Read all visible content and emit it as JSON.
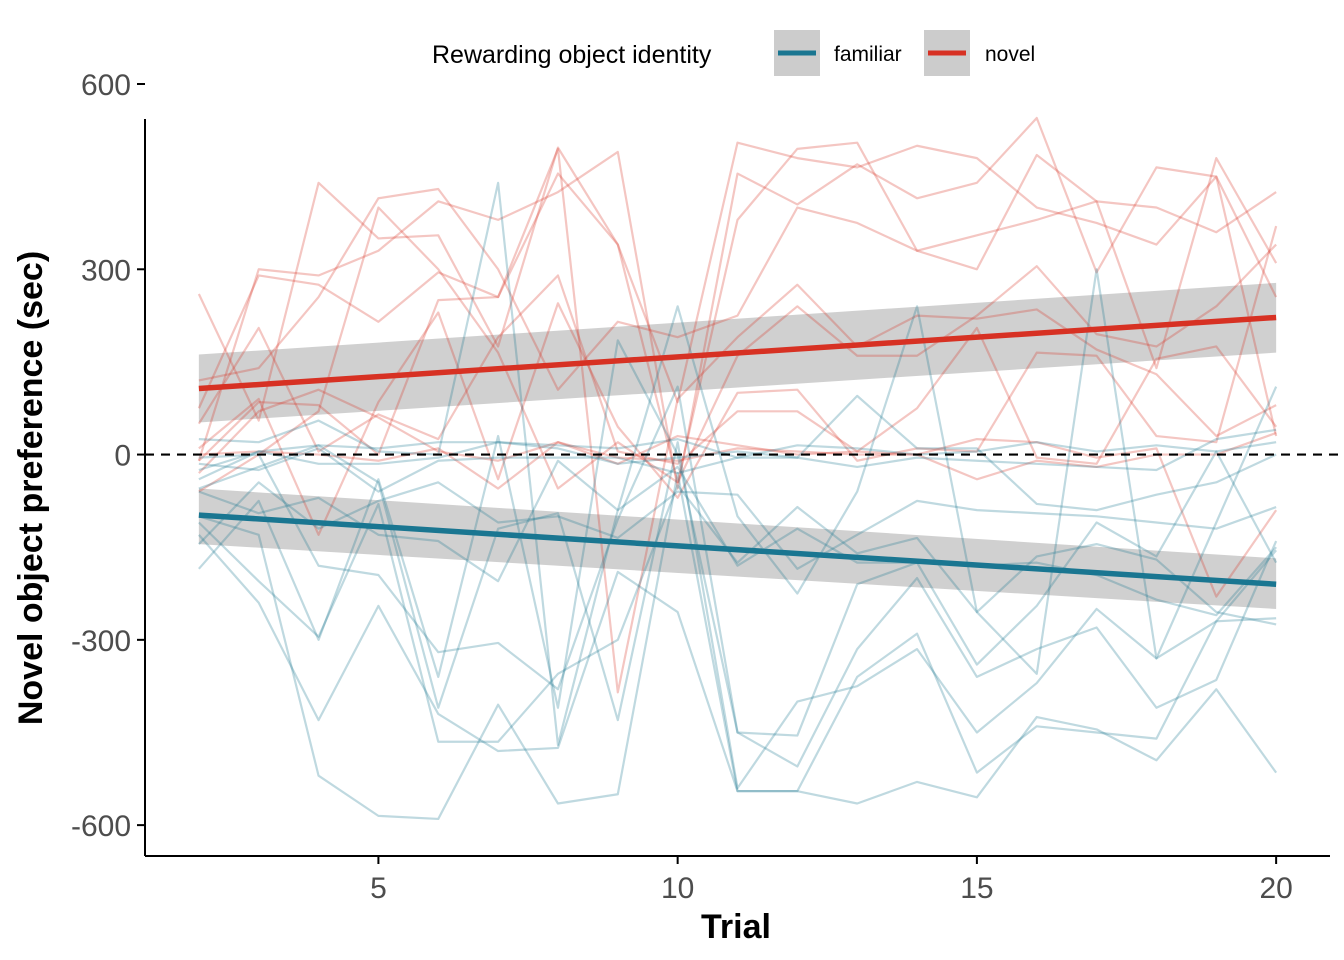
{
  "chart_data": {
    "type": "line",
    "xlabel": "Trial",
    "ylabel": "Novel object preference (sec)",
    "xlim": [
      1.1,
      20.9
    ],
    "ylim": [
      -650,
      600
    ],
    "xticks": [
      5,
      10,
      15,
      20
    ],
    "xtick_labels": [
      "5",
      "10",
      "15",
      "20"
    ],
    "yticks": [
      600,
      300,
      0,
      -300,
      -600
    ],
    "ytick_labels": [
      "600",
      "300",
      "0",
      "-300",
      "-600"
    ],
    "reference_line": {
      "y": 0,
      "style": "dashed",
      "color": "#000000"
    },
    "legend": {
      "title": "Rewarding object identity",
      "position": "top",
      "entries": [
        {
          "label": "familiar",
          "color": "#1a7691"
        },
        {
          "label": "novel",
          "color": "#d73123"
        }
      ]
    },
    "colors": {
      "familiar": "#1a7691",
      "novel": "#d73123",
      "ribbon": "#cccccc"
    },
    "x": [
      2,
      3,
      4,
      5,
      6,
      7,
      8,
      9,
      10,
      11,
      12,
      13,
      14,
      15,
      16,
      17,
      18,
      19,
      20
    ],
    "trend_lines": [
      {
        "group": "familiar",
        "x": [
          2,
          20
        ],
        "y": [
          -98,
          -210
        ],
        "ci_lower": [
          -145,
          -250
        ],
        "ci_upper": [
          -55,
          -168
        ]
      },
      {
        "group": "novel",
        "x": [
          2,
          20
        ],
        "y": [
          107,
          222
        ],
        "ci_lower": [
          52,
          165
        ],
        "ci_upper": [
          162,
          278
        ]
      }
    ],
    "series": [
      {
        "group": "novel",
        "values": [
          260,
          55,
          440,
          350,
          355,
          175,
          497,
          340,
          85,
          505,
          480,
          465,
          500,
          480,
          400,
          375,
          340,
          450,
          255
        ]
      },
      {
        "group": "novel",
        "values": [
          -10,
          300,
          290,
          330,
          410,
          380,
          425,
          490,
          -55,
          455,
          405,
          470,
          415,
          440,
          545,
          295,
          465,
          450,
          30
        ]
      },
      {
        "group": "novel",
        "values": [
          75,
          290,
          275,
          215,
          295,
          255,
          455,
          340,
          -45,
          380,
          495,
          505,
          330,
          300,
          485,
          410,
          140,
          480,
          310
        ]
      },
      {
        "group": "novel",
        "values": [
          120,
          140,
          255,
          415,
          430,
          300,
          105,
          215,
          190,
          225,
          400,
          375,
          330,
          355,
          380,
          410,
          400,
          360,
          425
        ]
      },
      {
        "group": "novel",
        "values": [
          -60,
          0,
          70,
          400,
          300,
          165,
          -55,
          20,
          -45,
          160,
          240,
          160,
          160,
          225,
          305,
          195,
          175,
          240,
          340
        ]
      },
      {
        "group": "novel",
        "values": [
          -10,
          85,
          80,
          0,
          250,
          255,
          495,
          -385,
          90,
          190,
          275,
          175,
          225,
          220,
          235,
          170,
          130,
          30,
          80
        ]
      },
      {
        "group": "novel",
        "values": [
          50,
          205,
          5,
          65,
          25,
          190,
          290,
          5,
          -15,
          70,
          70,
          5,
          75,
          205,
          -5,
          -15,
          155,
          175,
          45
        ]
      },
      {
        "group": "novel",
        "values": [
          0,
          5,
          0,
          -10,
          10,
          -55,
          20,
          -5,
          -10,
          10,
          5,
          0,
          0,
          -40,
          -10,
          -20,
          0,
          0,
          35
        ]
      },
      {
        "group": "novel",
        "values": [
          -30,
          70,
          105,
          60,
          5,
          -10,
          20,
          -15,
          30,
          15,
          0,
          5,
          0,
          25,
          20,
          -5,
          10,
          -230,
          -90
        ]
      },
      {
        "group": "novel",
        "values": [
          10,
          90,
          -130,
          85,
          230,
          -40,
          245,
          45,
          -70,
          100,
          105,
          -10,
          10,
          5,
          165,
          160,
          30,
          20,
          370
        ]
      },
      {
        "group": "familiar",
        "values": [
          25,
          20,
          55,
          5,
          0,
          440,
          -470,
          -90,
          240,
          -100,
          -225,
          -60,
          240,
          -255,
          -355,
          300,
          -330,
          -110,
          110
        ]
      },
      {
        "group": "familiar",
        "values": [
          -185,
          -75,
          -300,
          -40,
          -360,
          30,
          -410,
          185,
          0,
          -450,
          -455,
          -210,
          -175,
          -340,
          -245,
          -110,
          -165,
          5,
          -175
        ]
      },
      {
        "group": "familiar",
        "values": [
          -55,
          -20,
          15,
          -45,
          -410,
          -120,
          -95,
          -430,
          20,
          -540,
          -400,
          -375,
          -315,
          -450,
          -370,
          -250,
          -330,
          -270,
          -155
        ]
      },
      {
        "group": "familiar",
        "values": [
          -5,
          0,
          -180,
          -195,
          -320,
          -305,
          -380,
          -105,
          110,
          -450,
          -505,
          -315,
          -200,
          -360,
          -315,
          -280,
          -410,
          -365,
          -140
        ]
      },
      {
        "group": "familiar",
        "values": [
          -130,
          -240,
          -430,
          -245,
          -420,
          -480,
          -475,
          -190,
          -255,
          -545,
          -545,
          -360,
          -290,
          -515,
          -440,
          -450,
          -460,
          -270,
          -265
        ]
      },
      {
        "group": "familiar",
        "values": [
          -100,
          -130,
          -520,
          -585,
          -590,
          -405,
          -565,
          -550,
          -30,
          -545,
          -545,
          -565,
          -530,
          -555,
          -425,
          -445,
          -495,
          -380,
          -515
        ]
      },
      {
        "group": "familiar",
        "values": [
          -110,
          -205,
          -295,
          -80,
          -465,
          -465,
          -355,
          -300,
          -50,
          -175,
          -85,
          -160,
          -135,
          -255,
          -165,
          -145,
          -170,
          -255,
          -275
        ]
      },
      {
        "group": "familiar",
        "values": [
          -40,
          5,
          -15,
          -15,
          -5,
          20,
          10,
          -15,
          -5,
          5,
          -5,
          -20,
          -5,
          -10,
          -15,
          -20,
          -25,
          25,
          40
        ]
      },
      {
        "group": "familiar",
        "values": [
          -25,
          5,
          15,
          10,
          20,
          20,
          15,
          10,
          25,
          -5,
          15,
          10,
          0,
          5,
          20,
          5,
          15,
          5,
          20
        ]
      },
      {
        "group": "familiar",
        "values": [
          -15,
          -25,
          10,
          -60,
          -10,
          -5,
          -5,
          -5,
          -30,
          -5,
          -5,
          95,
          10,
          10,
          -80,
          -90,
          -65,
          -45,
          0
        ]
      },
      {
        "group": "familiar",
        "values": [
          -60,
          -95,
          -70,
          -130,
          -140,
          -205,
          -10,
          -90,
          -20,
          -180,
          -120,
          -175,
          -175,
          -180,
          -175,
          -195,
          -235,
          -260,
          -150
        ]
      },
      {
        "group": "familiar",
        "values": [
          -145,
          -45,
          -120,
          -75,
          -45,
          -110,
          -100,
          -135,
          -60,
          -65,
          -185,
          -130,
          -75,
          -90,
          -95,
          -100,
          -110,
          -120,
          -85
        ]
      }
    ]
  }
}
